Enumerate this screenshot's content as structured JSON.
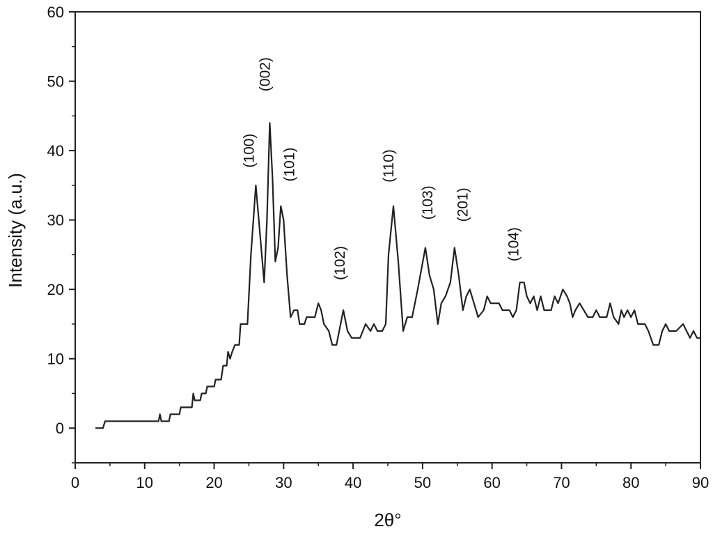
{
  "chart_data": {
    "type": "line",
    "title": "",
    "xlabel": "2θ°",
    "ylabel": "Intensity (a.u.)",
    "xlim": [
      0,
      90
    ],
    "ylim": [
      -5,
      60
    ],
    "x_ticks": [
      0,
      10,
      20,
      30,
      40,
      50,
      60,
      70,
      80,
      90
    ],
    "x_tick_labels": [
      "0",
      "10",
      "20",
      "30",
      "40",
      "50",
      "60",
      "70",
      "80",
      "90"
    ],
    "y_ticks": [
      0,
      10,
      20,
      30,
      40,
      50,
      60
    ],
    "y_tick_labels": [
      "0",
      "10",
      "20",
      "30",
      "40",
      "50",
      "60"
    ],
    "grid": false,
    "line_color": "#222222",
    "series": [
      {
        "points": [
          [
            3,
            0
          ],
          [
            4,
            0
          ],
          [
            4.3,
            1
          ],
          [
            12,
            1
          ],
          [
            12.2,
            2
          ],
          [
            12.4,
            1
          ],
          [
            13.5,
            1
          ],
          [
            13.7,
            2
          ],
          [
            15,
            2
          ],
          [
            15.2,
            3
          ],
          [
            16.8,
            3
          ],
          [
            17,
            5
          ],
          [
            17.2,
            4
          ],
          [
            18,
            4
          ],
          [
            18.2,
            5
          ],
          [
            18.8,
            5
          ],
          [
            19,
            6
          ],
          [
            20,
            6
          ],
          [
            20.2,
            7
          ],
          [
            21,
            7
          ],
          [
            21.3,
            9
          ],
          [
            21.8,
            9
          ],
          [
            22,
            11
          ],
          [
            22.3,
            10
          ],
          [
            22.6,
            11
          ],
          [
            23,
            12
          ],
          [
            23.6,
            12
          ],
          [
            23.8,
            15
          ],
          [
            24.8,
            15
          ],
          [
            25.3,
            25
          ],
          [
            26,
            35
          ],
          [
            26.6,
            28
          ],
          [
            27.2,
            21
          ],
          [
            27.6,
            30
          ],
          [
            28,
            44
          ],
          [
            28.4,
            36
          ],
          [
            28.8,
            24
          ],
          [
            29.2,
            26
          ],
          [
            29.6,
            32
          ],
          [
            30,
            30
          ],
          [
            30.5,
            22
          ],
          [
            31,
            16
          ],
          [
            31.5,
            17
          ],
          [
            32,
            17
          ],
          [
            32.3,
            15
          ],
          [
            33,
            15
          ],
          [
            33.3,
            16
          ],
          [
            34,
            16
          ],
          [
            34.5,
            16
          ],
          [
            35,
            18
          ],
          [
            35.4,
            17
          ],
          [
            35.8,
            15
          ],
          [
            36.5,
            14
          ],
          [
            37,
            12
          ],
          [
            37.6,
            12
          ],
          [
            38,
            14
          ],
          [
            38.6,
            17
          ],
          [
            39.2,
            14
          ],
          [
            39.8,
            13
          ],
          [
            41,
            13
          ],
          [
            41.8,
            15
          ],
          [
            42.5,
            14
          ],
          [
            43,
            15
          ],
          [
            43.5,
            14
          ],
          [
            44.2,
            14
          ],
          [
            44.7,
            15
          ],
          [
            45.1,
            25
          ],
          [
            45.8,
            32
          ],
          [
            46.5,
            24
          ],
          [
            47.2,
            14
          ],
          [
            47.8,
            16
          ],
          [
            48.5,
            16
          ],
          [
            49.3,
            20
          ],
          [
            50.4,
            26
          ],
          [
            51,
            22
          ],
          [
            51.6,
            20
          ],
          [
            52.2,
            15
          ],
          [
            52.7,
            18
          ],
          [
            53.3,
            19
          ],
          [
            54,
            21
          ],
          [
            54.6,
            26
          ],
          [
            55.2,
            22
          ],
          [
            55.8,
            17
          ],
          [
            56.3,
            19
          ],
          [
            56.8,
            20
          ],
          [
            57.4,
            18
          ],
          [
            58,
            16
          ],
          [
            58.8,
            17
          ],
          [
            59.3,
            19
          ],
          [
            59.8,
            18
          ],
          [
            61,
            18
          ],
          [
            61.5,
            17
          ],
          [
            62.5,
            17
          ],
          [
            63,
            16
          ],
          [
            63.5,
            17
          ],
          [
            64,
            21
          ],
          [
            64.6,
            21
          ],
          [
            65,
            19
          ],
          [
            65.5,
            18
          ],
          [
            66,
            19
          ],
          [
            66.5,
            17
          ],
          [
            67,
            19
          ],
          [
            67.5,
            17
          ],
          [
            68.5,
            17
          ],
          [
            69,
            19
          ],
          [
            69.5,
            18
          ],
          [
            70.2,
            20
          ],
          [
            70.8,
            19
          ],
          [
            71.2,
            18
          ],
          [
            71.6,
            16
          ],
          [
            72,
            17
          ],
          [
            72.6,
            18
          ],
          [
            73.2,
            17
          ],
          [
            73.8,
            16
          ],
          [
            74.5,
            16
          ],
          [
            75,
            17
          ],
          [
            75.5,
            16
          ],
          [
            76.5,
            16
          ],
          [
            77,
            18
          ],
          [
            77.5,
            16
          ],
          [
            78.2,
            15
          ],
          [
            78.6,
            17
          ],
          [
            79,
            16
          ],
          [
            79.5,
            17
          ],
          [
            80,
            16
          ],
          [
            80.5,
            17
          ],
          [
            81,
            15
          ],
          [
            81.5,
            15
          ],
          [
            82,
            15
          ],
          [
            82.5,
            14
          ],
          [
            83.2,
            12
          ],
          [
            84,
            12
          ],
          [
            84.5,
            14
          ],
          [
            85,
            15
          ],
          [
            85.5,
            14
          ],
          [
            86.5,
            14
          ],
          [
            87.5,
            15
          ],
          [
            88,
            14
          ],
          [
            88.5,
            13
          ],
          [
            89,
            14
          ],
          [
            89.5,
            13
          ],
          [
            90,
            13
          ]
        ]
      }
    ],
    "annotations": [
      {
        "text": "(100)",
        "x": 25.7,
        "y": 40.0
      },
      {
        "text": "(002)",
        "x": 28.0,
        "y": 51.0
      },
      {
        "text": "(101)",
        "x": 31.5,
        "y": 38.0
      },
      {
        "text": "(102)",
        "x": 38.8,
        "y": 23.8
      },
      {
        "text": "(110)",
        "x": 45.8,
        "y": 37.8
      },
      {
        "text": "(103)",
        "x": 51.4,
        "y": 32.5
      },
      {
        "text": "(201)",
        "x": 56.5,
        "y": 32.2
      },
      {
        "text": "(104)",
        "x": 63.8,
        "y": 26.5
      }
    ]
  }
}
